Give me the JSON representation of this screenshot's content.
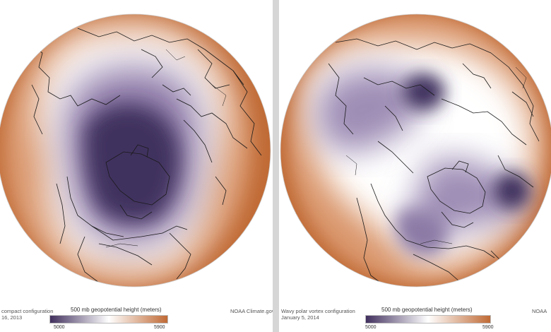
{
  "colors": {
    "low": "#41305e",
    "mid": "#ffffff",
    "high": "#c06a35",
    "coastline": "#1a1a1a"
  },
  "legend": {
    "title": "500 mb geopotential height (meters)",
    "min_label": "5000",
    "max_label": "5900",
    "min_value": 5000,
    "max_value": 5900
  },
  "left_map": {
    "caption_line1": "compact configuration",
    "caption_line2": "16, 2013",
    "credit": "NOAA Climate.gov"
  },
  "right_map": {
    "caption_line1": "Wavy polar vortex configuration",
    "caption_line2": "January 5, 2014",
    "credit": "NOAA"
  }
}
